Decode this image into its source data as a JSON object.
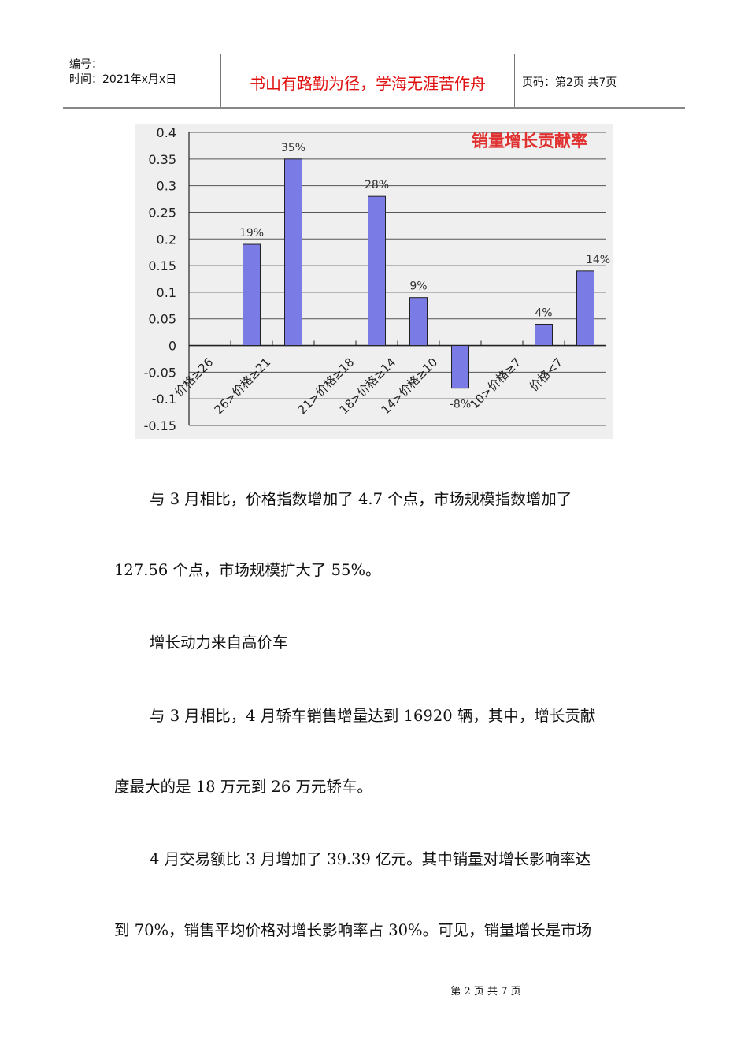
{
  "header": {
    "number_label": "编号：",
    "date_label": "时间：2021年x月x日",
    "motto": "书山有路勤为径，学海无涯苦作舟",
    "page_label": "页码：第2页 共7页"
  },
  "chart_data": {
    "type": "bar",
    "title": "销量增长贡献率",
    "categories": [
      "价格≥26",
      "26>价格≥21",
      "21>价格≥18",
      "18>价格≥14",
      "14>价格≥10",
      "10>价格≥7",
      "价格<7"
    ],
    "values": [
      0.19,
      0.35,
      0.28,
      0.09,
      -0.08,
      0.04,
      0.14
    ],
    "data_labels": [
      "19%",
      "35%",
      "28%",
      "9%",
      "-8%",
      "4%",
      "14%"
    ],
    "yticks": [
      "0.4",
      "0.35",
      "0.3",
      "0.25",
      "0.2",
      "0.15",
      "0.1",
      "0.05",
      "0",
      "-0.05",
      "-0.1",
      "-0.15"
    ],
    "ylim": [
      -0.15,
      0.4
    ],
    "grid": true,
    "colors": {
      "bar": "#7b7be6",
      "title": "#e03030",
      "background": "#efefef"
    }
  },
  "body": {
    "p1a": "与 3 月相比，价格指数增加了 4.7 个点，市场规模指数增加了",
    "p1b": "127.56 个点，市场规模扩大了 55%。",
    "p2": "增长动力来自高价车",
    "p3a": "与 3 月相比，4 月轿车销售增量达到 16920 辆，其中，增长贡献",
    "p3b": "度最大的是 18 万元到 26 万元轿车。",
    "p4a": "4 月交易额比 3 月增加了 39.39 亿元。其中销量对增长影响率达",
    "p4b": "到 70%，销售平均价格对增长影响率占 30%。可见，销量增长是市场"
  },
  "footer": {
    "page": "第 2 页 共 7 页"
  }
}
